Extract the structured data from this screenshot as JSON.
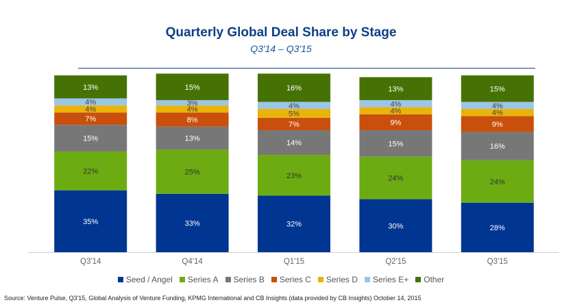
{
  "title": "Quarterly Global Deal Share by Stage",
  "subtitle": "Q3'14 – Q3'15",
  "source": "Source: Venture Pulse, Q3'15, Global Analysis of Venture Funding, KPMG International and CB Insights (data provided by CB Insights) October 14, 2015",
  "chart_data": {
    "type": "bar",
    "stacked": true,
    "unit": "%",
    "title": "Quarterly Global Deal Share by Stage",
    "subtitle": "Q3'14 – Q3'15",
    "categories": [
      "Q3'14",
      "Q4'14",
      "Q1'15",
      "Q2'15",
      "Q3'15"
    ],
    "ylim": [
      0,
      100
    ],
    "legend_position": "bottom",
    "series": [
      {
        "name": "Seed / Angel",
        "color": "#003591",
        "label_color": "#ffffff",
        "values": [
          35,
          33,
          32,
          30,
          28
        ]
      },
      {
        "name": "Series A",
        "color": "#6cac12",
        "label_color": "#333333",
        "values": [
          22,
          25,
          23,
          24,
          24
        ]
      },
      {
        "name": "Series B",
        "color": "#777777",
        "label_color": "#ffffff",
        "values": [
          15,
          13,
          14,
          15,
          16
        ]
      },
      {
        "name": "Series C",
        "color": "#c9500c",
        "label_color": "#ffffff",
        "values": [
          7,
          8,
          7,
          9,
          9
        ]
      },
      {
        "name": "Series D",
        "color": "#eab30a",
        "label_color": "#444444",
        "values": [
          4,
          4,
          5,
          4,
          4
        ]
      },
      {
        "name": "Series E+",
        "color": "#9cc6e6",
        "label_color": "#444444",
        "values": [
          4,
          3,
          4,
          4,
          4
        ]
      },
      {
        "name": "Other",
        "color": "#467205",
        "label_color": "#ffffff",
        "values": [
          13,
          15,
          16,
          13,
          15
        ]
      }
    ]
  }
}
